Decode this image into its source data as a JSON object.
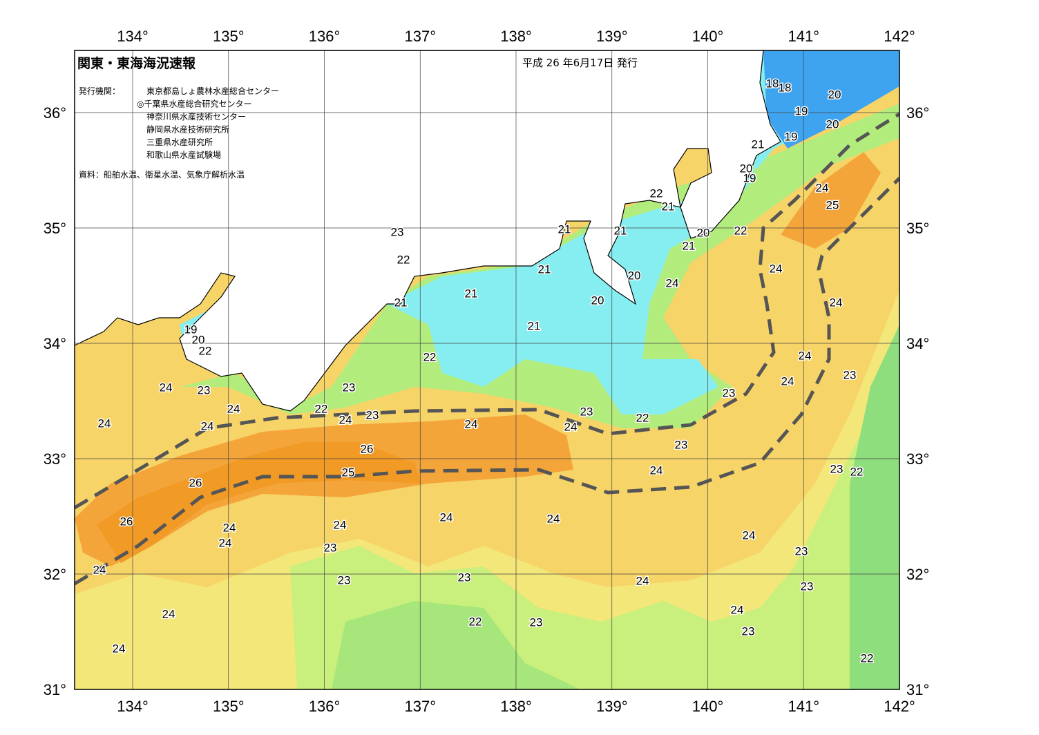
{
  "header": {
    "title": "関東・東海海況速報",
    "date": "平成 26 年6月17日 発行",
    "agency_label": "発行機関：",
    "agencies": [
      "東京都島しょ農林水産総合センター",
      "◎千葉県水産総合研究センター",
      "神奈川県水産技術センター",
      "静岡県水産技術研究所",
      "三重県水産研究所",
      "和歌山県水産試験場"
    ],
    "source": "資料：船舶水温、衛星水温、気象庁解析水温"
  },
  "axes": {
    "lon_labels": [
      "134°",
      "135°",
      "136°",
      "137°",
      "138°",
      "139°",
      "140°",
      "141°",
      "142°"
    ],
    "lat_labels": [
      "31°",
      "32°",
      "33°",
      "34°",
      "35°",
      "36°"
    ]
  },
  "contour_labels": [
    "18",
    "18",
    "20",
    "19",
    "20",
    "19",
    "21",
    "20",
    "19",
    "22",
    "21",
    "24",
    "25",
    "23",
    "21",
    "21",
    "20",
    "22",
    "21",
    "22",
    "21",
    "20",
    "24",
    "24",
    "21",
    "21",
    "20",
    "24",
    "21",
    "19",
    "20",
    "22",
    "22",
    "24",
    "24",
    "23",
    "24",
    "23",
    "23",
    "23",
    "24",
    "22",
    "24",
    "23",
    "23",
    "24",
    "24",
    "24",
    "24",
    "22",
    "23",
    "26",
    "26",
    "25",
    "24",
    "23",
    "22",
    "26",
    "24",
    "24",
    "24",
    "24",
    "24",
    "24",
    "23",
    "23",
    "24",
    "23",
    "23",
    "24",
    "23",
    "24",
    "24",
    "22",
    "23",
    "23",
    "24",
    "22"
  ]
}
